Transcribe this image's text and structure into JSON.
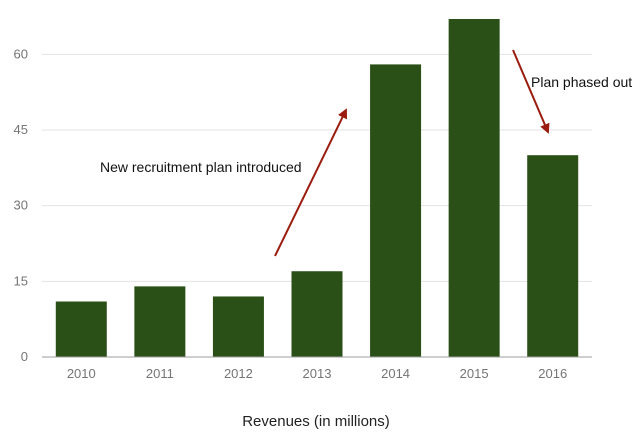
{
  "chart_data": {
    "type": "bar",
    "categories": [
      "2010",
      "2011",
      "2012",
      "2013",
      "2014",
      "2015",
      "2016"
    ],
    "values": [
      11,
      14,
      12,
      17,
      58,
      67,
      40
    ],
    "xlabel": "Revenues (in millions)",
    "ylabel": "",
    "ylim": [
      0,
      67
    ],
    "yticks": [
      0,
      15,
      30,
      45,
      60
    ],
    "grid": true,
    "bar_color": "#2a4f17",
    "annotations": [
      {
        "text": "New recruitment plan introduced",
        "arrow_color": "#9b1c0f"
      },
      {
        "text": "Plan phased out",
        "arrow_color": "#9b1c0f"
      }
    ]
  }
}
